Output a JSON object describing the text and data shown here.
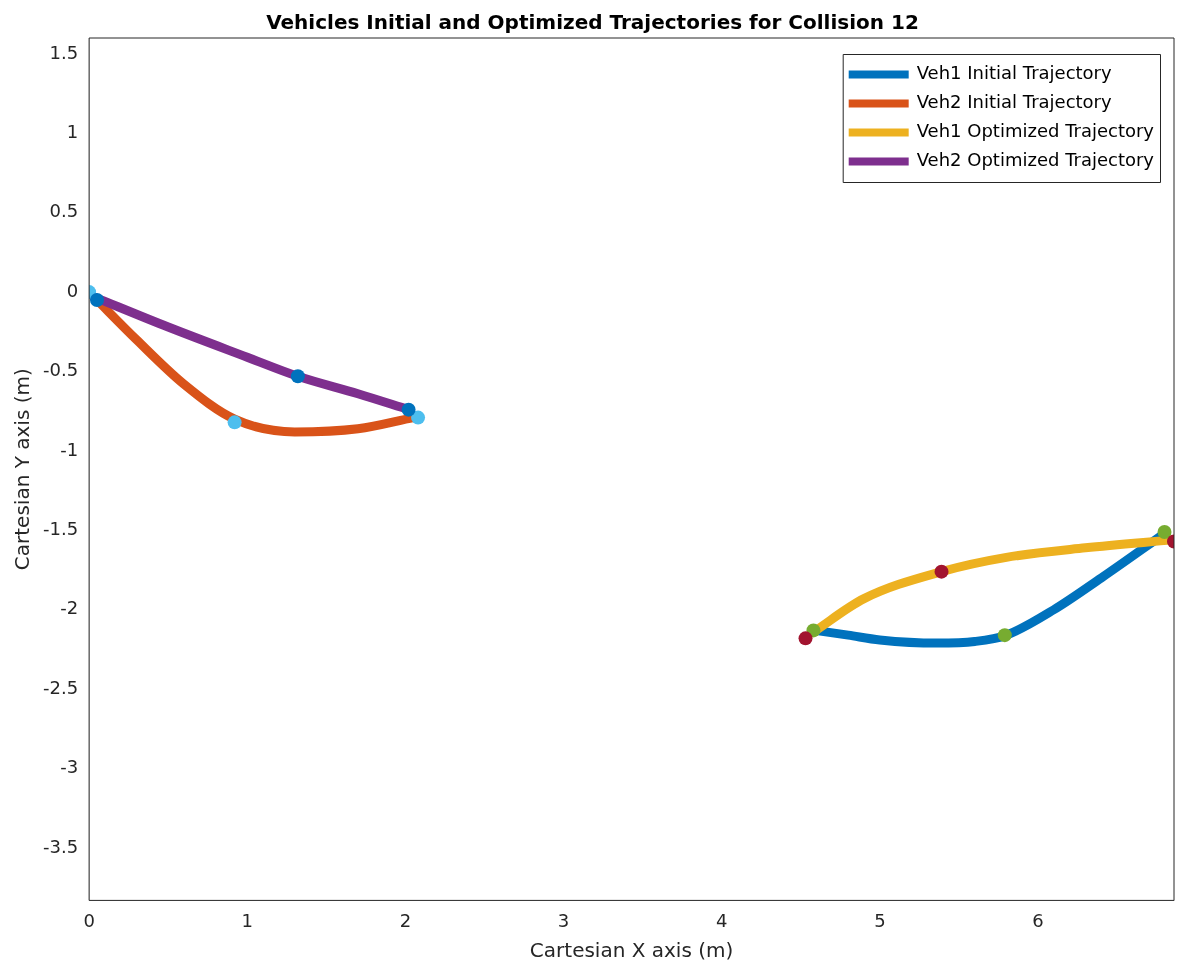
{
  "chart_data": {
    "type": "line",
    "title": "Vehicles Initial and Optimized Trajectories for Collision 12",
    "xlabel": "Cartesian X axis (m)",
    "ylabel": "Cartesian Y axis (m)",
    "xlim": [
      0,
      6.86
    ],
    "ylim": [
      -3.83,
      1.6
    ],
    "xticks": [
      0,
      1,
      2,
      3,
      4,
      5,
      6
    ],
    "yticks": [
      -3.5,
      -3,
      -2.5,
      -2,
      -1.5,
      -1,
      -0.5,
      0,
      0.5,
      1,
      1.5
    ],
    "grid": false,
    "legend": "top right",
    "marker": "none",
    "series": [
      {
        "name": "Veh1 Initial Trajectory",
        "color": "#0072bd",
        "x": [
          4.59,
          4.8,
          5.0,
          5.36,
          5.6,
          5.8,
          6.1,
          6.4,
          6.8
        ],
        "values": [
          -2.13,
          -2.16,
          -2.19,
          -2.21,
          -2.2,
          -2.16,
          -2.0,
          -1.8,
          -1.52
        ]
      },
      {
        "name": "Veh2 Initial Trajectory",
        "color": "#d95319",
        "x": [
          0.03,
          0.3,
          0.6,
          0.92,
          1.3,
          1.7,
          2.05
        ],
        "values": [
          -0.03,
          -0.3,
          -0.58,
          -0.8,
          -0.88,
          -0.86,
          -0.79
        ]
      },
      {
        "name": "Veh1 Optimized Trajectory",
        "color": "#edb120",
        "x": [
          4.58,
          4.9,
          5.39,
          5.8,
          6.3,
          6.85
        ],
        "values": [
          -2.14,
          -1.93,
          -1.76,
          -1.67,
          -1.61,
          -1.56
        ]
      },
      {
        "name": "Veh2 Optimized Trajectory",
        "color": "#7e2f8e",
        "x": [
          0.03,
          0.5,
          1.0,
          1.32,
          1.7,
          2.02
        ],
        "values": [
          -0.03,
          -0.22,
          -0.41,
          -0.53,
          -0.64,
          -0.74
        ]
      },
      {
        "color": "#4dbeee",
        "type": "scatter",
        "marker": "circle",
        "x": [
          0,
          0.92,
          2.08
        ],
        "values": [
          0,
          -0.82,
          -0.79
        ]
      },
      {
        "color": "#0072bd",
        "type": "scatter",
        "marker": "circle",
        "x": [
          0.05,
          1.32,
          2.02
        ],
        "values": [
          -0.05,
          -0.53,
          -0.74
        ]
      },
      {
        "color": "#77ac30",
        "type": "scatter",
        "marker": "circle",
        "x": [
          4.58,
          5.79,
          6.8
        ],
        "values": [
          -2.13,
          -2.16,
          -1.51
        ]
      },
      {
        "color": "#a2142f",
        "type": "scatter",
        "marker": "circle",
        "x": [
          4.53,
          5.39,
          6.86
        ],
        "values": [
          -2.18,
          -1.76,
          -1.57
        ]
      }
    ]
  }
}
